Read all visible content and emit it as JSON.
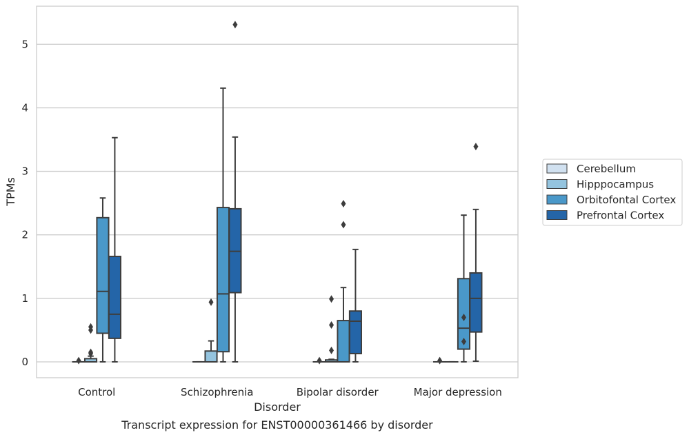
{
  "chart_data": {
    "type": "box",
    "caption": "Transcript expression for ENST00000361466 by disorder",
    "xlabel": "Disorder",
    "ylabel": "TPMs",
    "ylim": [
      -0.25,
      5.6
    ],
    "yticks": [
      0,
      1,
      2,
      3,
      4,
      5
    ],
    "grid": "horizontal",
    "legend_position": "right",
    "categories": [
      "Control",
      "Schizophrenia",
      "Bipolar disorder",
      "Major depression"
    ],
    "series": [
      {
        "name": "Cerebellum",
        "color": "#d1e1f0",
        "boxes": [
          {
            "whislo": 0.0,
            "q1": 0.0,
            "med": 0.0,
            "q3": 0.0,
            "whishi": 0.0,
            "fliers": [
              0.02
            ]
          },
          {
            "whislo": 0.0,
            "q1": 0.0,
            "med": 0.0,
            "q3": 0.0,
            "whishi": 0.0,
            "fliers": []
          },
          {
            "whislo": 0.0,
            "q1": 0.0,
            "med": 0.0,
            "q3": 0.0,
            "whishi": 0.0,
            "fliers": [
              0.02
            ]
          },
          {
            "whislo": 0.0,
            "q1": 0.0,
            "med": 0.0,
            "q3": 0.0,
            "whishi": 0.0,
            "fliers": [
              0.02
            ]
          }
        ]
      },
      {
        "name": "Hipppocampus",
        "color": "#94c4df",
        "boxes": [
          {
            "whislo": 0.0,
            "q1": 0.0,
            "med": 0.0,
            "q3": 0.05,
            "whishi": 0.09,
            "fliers": [
              0.13,
              0.15,
              0.5,
              0.55
            ]
          },
          {
            "whislo": 0.0,
            "q1": 0.0,
            "med": 0.0,
            "q3": 0.17,
            "whishi": 0.33,
            "fliers": [
              0.94
            ]
          },
          {
            "whislo": 0.0,
            "q1": 0.0,
            "med": 0.0,
            "q3": 0.03,
            "whishi": 0.04,
            "fliers": [
              0.18,
              0.58,
              0.99
            ]
          },
          {
            "whislo": 0.0,
            "q1": 0.0,
            "med": 0.0,
            "q3": 0.0,
            "whishi": 0.0,
            "fliers": []
          }
        ]
      },
      {
        "name": "Orbitofontal Cortex",
        "color": "#4a98c9",
        "boxes": [
          {
            "whislo": 0.0,
            "q1": 0.45,
            "med": 1.11,
            "q3": 2.27,
            "whishi": 2.58,
            "fliers": []
          },
          {
            "whislo": 0.0,
            "q1": 0.16,
            "med": 1.07,
            "q3": 2.43,
            "whishi": 4.31,
            "fliers": []
          },
          {
            "whislo": 0.0,
            "q1": 0.0,
            "med": 0.0,
            "q3": 0.65,
            "whishi": 1.17,
            "fliers": [
              2.16,
              2.49
            ]
          },
          {
            "whislo": 0.0,
            "q1": 0.2,
            "med": 0.53,
            "q3": 1.31,
            "whishi": 2.31,
            "fliers": [
              0.32,
              0.7
            ]
          }
        ]
      },
      {
        "name": "Prefrontal Cortex",
        "color": "#2465a8",
        "boxes": [
          {
            "whislo": 0.0,
            "q1": 0.37,
            "med": 0.75,
            "q3": 1.66,
            "whishi": 3.53,
            "fliers": []
          },
          {
            "whislo": 0.0,
            "q1": 1.09,
            "med": 1.74,
            "q3": 2.41,
            "whishi": 3.54,
            "fliers": [
              5.31
            ]
          },
          {
            "whislo": 0.0,
            "q1": 0.13,
            "med": 0.64,
            "q3": 0.8,
            "whishi": 1.77,
            "fliers": []
          },
          {
            "whislo": 0.01,
            "q1": 0.47,
            "med": 1.0,
            "q3": 1.4,
            "whishi": 2.4,
            "fliers": [
              3.39
            ]
          }
        ]
      }
    ]
  }
}
